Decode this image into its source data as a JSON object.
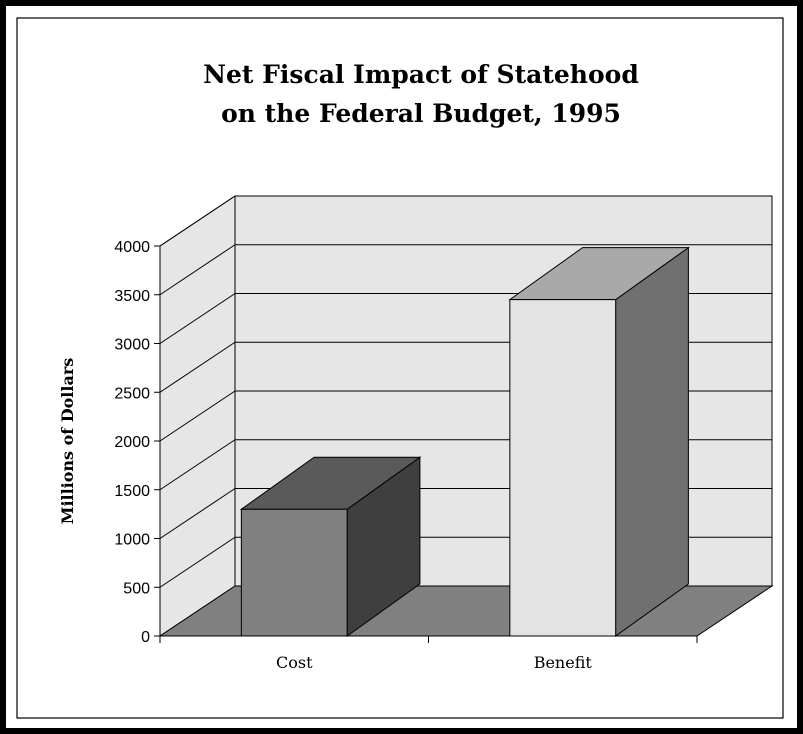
{
  "chart_data": {
    "type": "bar",
    "title": "Net Fiscal Impact of Statehood",
    "subtitle": "on the Federal Budget, 1995",
    "xlabel": "",
    "ylabel": "Millions of Dollars",
    "categories": [
      "Cost",
      "Benefit"
    ],
    "values": [
      1300,
      3450
    ],
    "ylim": [
      0,
      4000
    ],
    "yticks": [
      "0",
      "500",
      "1000",
      "1500",
      "2000",
      "2500",
      "3000",
      "3500",
      "4000"
    ],
    "grid": true,
    "three_d": true,
    "colors": {
      "bar_fronts": [
        "#808080",
        "#e3e3e3"
      ],
      "bar_tops": [
        "#5a5a5a",
        "#a9a9a9"
      ],
      "bar_sides": [
        "#3f3f3f",
        "#707070"
      ],
      "floor": "#808080",
      "walls": "#e6e6e6"
    }
  }
}
